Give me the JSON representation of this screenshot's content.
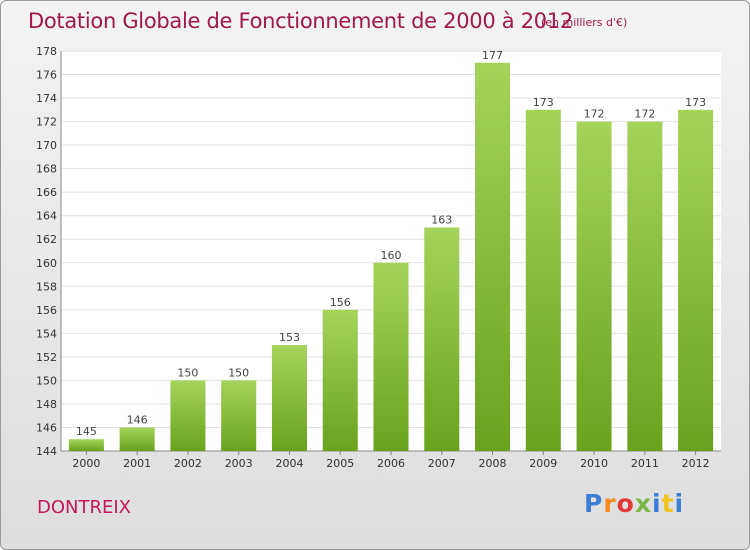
{
  "header": {
    "title": "Dotation Globale de Fonctionnement de 2000 à 2012",
    "unit": "(en milliers d'€)"
  },
  "footer": {
    "commune": "DONTREIX",
    "logo_letters": [
      "P",
      "r",
      "o",
      "x",
      "i",
      "t",
      "i"
    ],
    "logo_colors": [
      "#3b7fd4",
      "#f28c1e",
      "#e23b3b",
      "#7ab648",
      "#3b7fd4",
      "#f2c21e",
      "#3b7fd4"
    ]
  },
  "colors": {
    "bar_light": "#a6d35b",
    "bar_dark": "#6aa21e",
    "title": "#a0184d"
  },
  "chart_data": {
    "type": "bar",
    "categories": [
      "2000",
      "2001",
      "2002",
      "2003",
      "2004",
      "2005",
      "2006",
      "2007",
      "2008",
      "2009",
      "2010",
      "2011",
      "2012"
    ],
    "values": [
      145,
      146,
      150,
      150,
      153,
      156,
      160,
      163,
      177,
      173,
      172,
      172,
      173
    ],
    "yticks": [
      144,
      146,
      148,
      150,
      152,
      154,
      156,
      158,
      160,
      162,
      164,
      166,
      168,
      170,
      172,
      174,
      176,
      178
    ],
    "ylim": [
      144,
      178
    ],
    "grid": true
  }
}
